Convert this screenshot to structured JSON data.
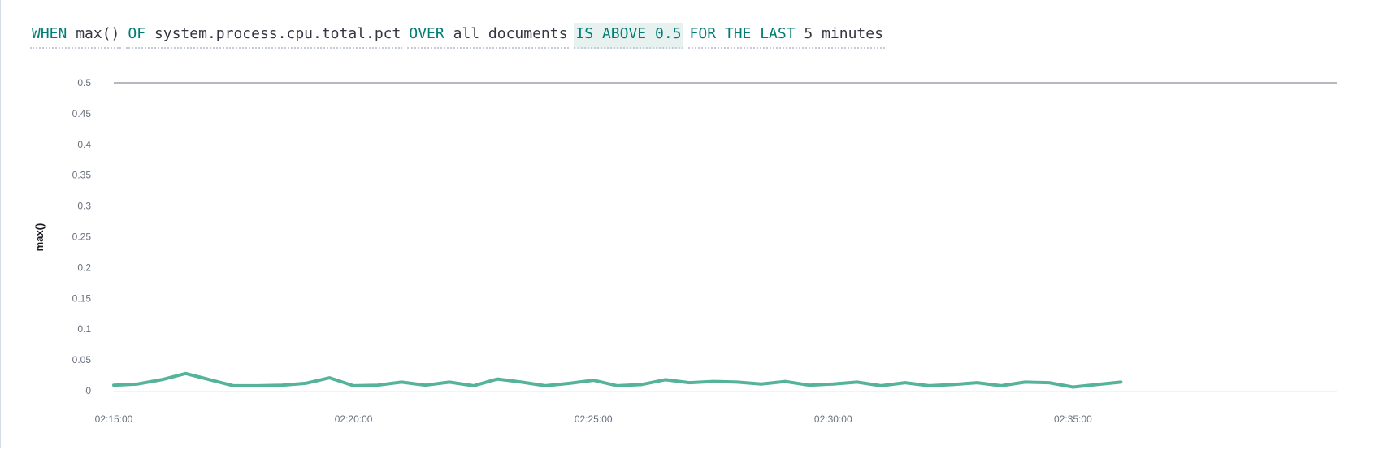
{
  "expression": {
    "when": {
      "keyword": "WHEN",
      "value": "max()"
    },
    "of": {
      "keyword": "OF",
      "value": "system.process.cpu.total.pct"
    },
    "over": {
      "keyword": "OVER",
      "value": "all documents"
    },
    "threshold": {
      "keyword": "IS ABOVE",
      "value": "0.5"
    },
    "window": {
      "keyword": "FOR THE LAST",
      "value": "5 minutes"
    }
  },
  "colors": {
    "line": "#54b399",
    "threshold": "#b5b8bd",
    "keyword": "#017d73",
    "text": "#343741",
    "tick": "#69707d"
  },
  "chart_data": {
    "type": "line",
    "ylabel": "max()",
    "xlabel": "",
    "ylim": [
      0,
      0.5
    ],
    "yticks": [
      "0.5",
      "0.45",
      "0.4",
      "0.35",
      "0.3",
      "0.25",
      "0.2",
      "0.15",
      "0.1",
      "0.05",
      "0"
    ],
    "xlim": [
      "02:15:00",
      "02:40:30"
    ],
    "xticks": [
      "02:15:00",
      "02:20:00",
      "02:25:00",
      "02:30:00",
      "02:35:00"
    ],
    "threshold": 0.5,
    "series": [
      {
        "x": [
          "02:15:00",
          "02:15:30",
          "02:16:00",
          "02:16:30",
          "02:17:00",
          "02:17:30",
          "02:18:00",
          "02:18:30",
          "02:19:00",
          "02:19:30",
          "02:20:00",
          "02:20:30",
          "02:21:00",
          "02:21:30",
          "02:22:00",
          "02:22:30",
          "02:23:00",
          "02:23:30",
          "02:24:00",
          "02:24:30",
          "02:25:00",
          "02:25:30",
          "02:26:00",
          "02:26:30",
          "02:27:00",
          "02:27:30",
          "02:28:00",
          "02:28:30",
          "02:29:00",
          "02:29:30",
          "02:30:00",
          "02:30:30",
          "02:31:00",
          "02:31:30",
          "02:32:00",
          "02:32:30",
          "02:33:00",
          "02:33:30",
          "02:34:00",
          "02:34:30",
          "02:35:00",
          "02:35:30",
          "02:36:00"
        ],
        "values": [
          0.009,
          0.011,
          0.018,
          0.028,
          0.018,
          0.008,
          0.008,
          0.009,
          0.012,
          0.021,
          0.008,
          0.009,
          0.014,
          0.009,
          0.014,
          0.008,
          0.019,
          0.014,
          0.008,
          0.012,
          0.017,
          0.008,
          0.01,
          0.018,
          0.013,
          0.015,
          0.014,
          0.011,
          0.015,
          0.009,
          0.011,
          0.014,
          0.008,
          0.013,
          0.008,
          0.01,
          0.013,
          0.008,
          0.014,
          0.013,
          0.006,
          0.01,
          0.014
        ]
      }
    ]
  }
}
